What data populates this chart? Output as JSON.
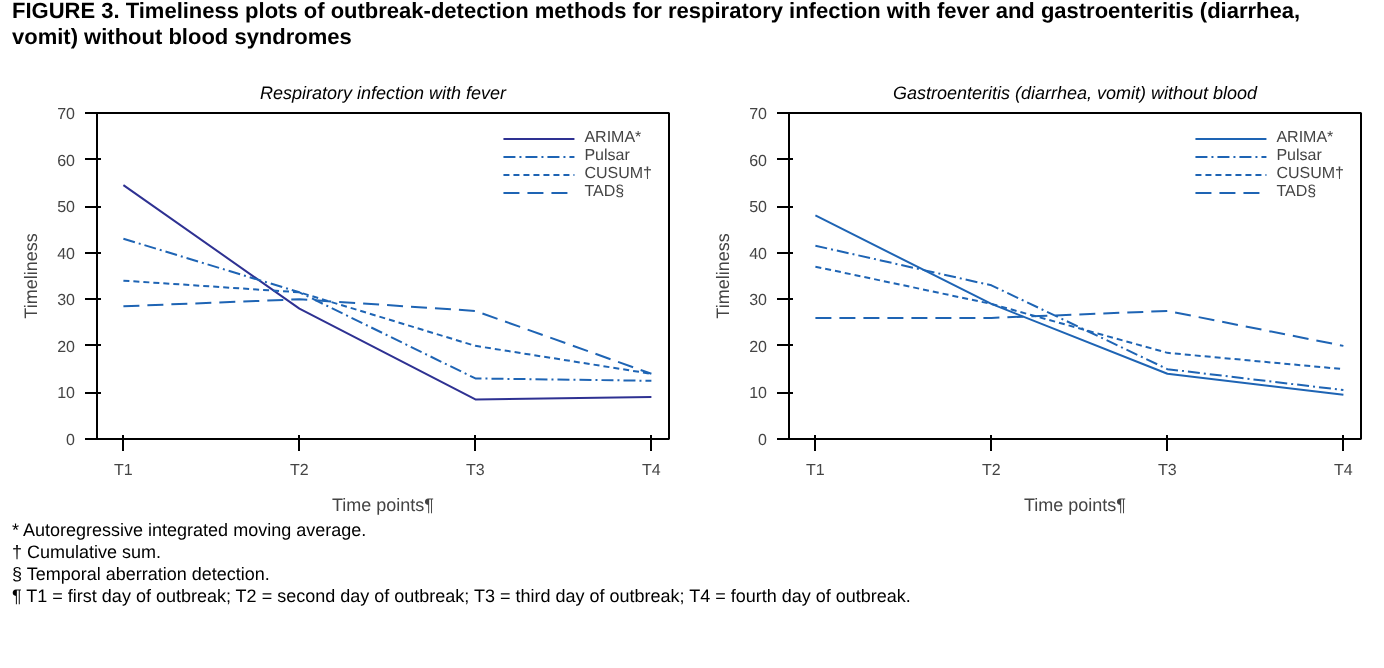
{
  "chart_data": [
    {
      "type": "line",
      "title": "Respiratory infection with fever",
      "xlabel": "Time points¶",
      "ylabel": "Timeliness",
      "categories": [
        "T1",
        "T2",
        "T3",
        "T4"
      ],
      "ylim": [
        0,
        70
      ],
      "yticks": [
        0,
        10,
        20,
        30,
        40,
        50,
        60,
        70
      ],
      "grid": false,
      "legend": "top right",
      "marker": "none",
      "annotations": [
        "FIGURE 3. Timeliness plots of outbreak-detection methods for respiratory infection with fever and gastroenteritis (diarrhea, vomit) without blood syndromes",
        "* Autoregressive integrated moving average.",
        "† Cumulative sum.",
        "§ Temporal aberration detection.",
        "¶ T1 = first day of outbreak; T2 = second day of outbreak; T3 = third day of outbreak; T4 = fourth day of outbreak."
      ],
      "series": [
        {
          "name": "ARIMA*",
          "color": "#2e3192",
          "line_style": "solid",
          "values": [
            54.5,
            28,
            8.5,
            9
          ]
        },
        {
          "name": "Pulsar",
          "color": "#1e64b4",
          "line_style": "dashdot",
          "values": [
            43,
            31.5,
            13,
            12.5
          ]
        },
        {
          "name": "CUSUM†",
          "color": "#1e64b4",
          "line_style": "dotted",
          "values": [
            34,
            31.5,
            20,
            14
          ]
        },
        {
          "name": "TAD§",
          "color": "#1e64b4",
          "line_style": "dashed",
          "values": [
            28.5,
            30,
            27.5,
            14
          ]
        }
      ]
    },
    {
      "type": "line",
      "title": "Gastroenteritis (diarrhea, vomit) without blood",
      "xlabel": "Time points¶",
      "ylabel": "Timeliness",
      "categories": [
        "T1",
        "T2",
        "T3",
        "T4"
      ],
      "ylim": [
        0,
        70
      ],
      "yticks": [
        0,
        10,
        20,
        30,
        40,
        50,
        60,
        70
      ],
      "grid": false,
      "legend": "top right",
      "marker": "none",
      "series": [
        {
          "name": "ARIMA*",
          "color": "#1e64b4",
          "line_style": "solid",
          "values": [
            48,
            29,
            14,
            9.5
          ]
        },
        {
          "name": "Pulsar",
          "color": "#1e64b4",
          "line_style": "dashdot",
          "values": [
            41.5,
            33,
            15,
            10.5
          ]
        },
        {
          "name": "CUSUM†",
          "color": "#1e64b4",
          "line_style": "dotted",
          "values": [
            37,
            29,
            18.5,
            15
          ]
        },
        {
          "name": "TAD§",
          "color": "#1e64b4",
          "line_style": "dashed",
          "values": [
            26,
            26,
            27.5,
            20
          ]
        }
      ]
    }
  ]
}
